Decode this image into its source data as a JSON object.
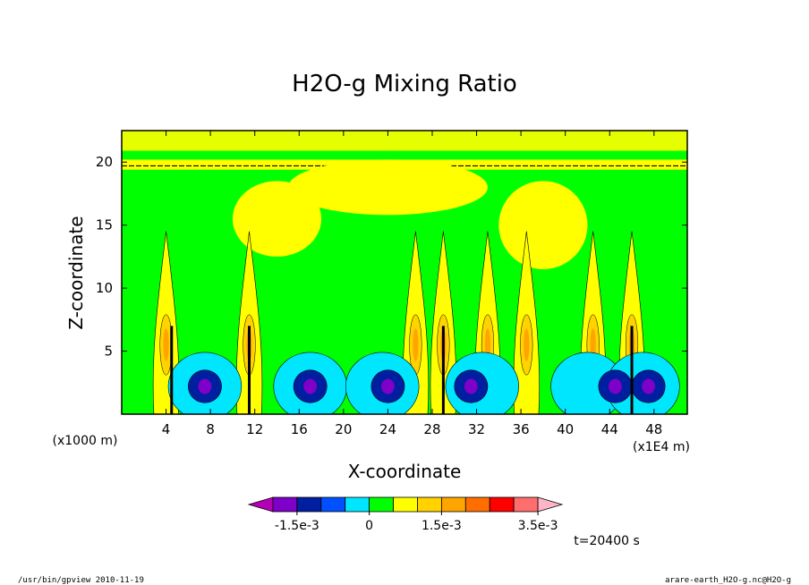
{
  "chart_data": {
    "type": "heatmap",
    "title": "H2O-g Mixing Ratio",
    "xlabel": "X-coordinate",
    "ylabel": "Z-coordinate",
    "x_unit_left": "(x1000 m)",
    "x_unit_right": "(x1E4 m)",
    "xlim": [
      0,
      51
    ],
    "ylim": [
      0,
      22.5
    ],
    "x_ticks": [
      4,
      8,
      12,
      16,
      20,
      24,
      28,
      32,
      36,
      40,
      44,
      48
    ],
    "y_ticks": [
      5,
      10,
      15,
      20
    ],
    "time_label": "t=20400 s",
    "colorbar": {
      "levels": [
        -0.0025,
        -0.002,
        -0.0015,
        -0.001,
        -0.0005,
        0,
        0.0005,
        0.001,
        0.0015,
        0.002,
        0.0025,
        0.003,
        0.0035
      ],
      "colors": [
        "#b400b4",
        "#7f00c8",
        "#001ea0",
        "#0050ff",
        "#00e6ff",
        "#00ff00",
        "#ffff00",
        "#ffd200",
        "#ffa500",
        "#ff6e00",
        "#ff0000",
        "#ff6e6e",
        "#ffb4c8"
      ],
      "labels": [
        "-1.5e-3",
        "0",
        "1.5e-3",
        "3.5e-3"
      ],
      "label_values": [
        -0.0015,
        0,
        0.0015,
        0.0035
      ]
    },
    "regions": {
      "background_value": 0,
      "upper_band_value": 0.0005,
      "yellow_plumes_x": [
        4,
        11.5,
        26.5,
        29,
        33,
        36.5,
        42.5,
        46
      ],
      "cyan_pools_x": [
        7.5,
        17,
        23.5,
        32.5,
        42,
        47
      ],
      "blue_cores_x": [
        7.5,
        17,
        24,
        31.5,
        44.5,
        47.5
      ],
      "dark_columns_x": [
        4.5,
        11.5,
        29,
        46
      ]
    }
  },
  "footer": {
    "left": "/usr/bin/gpview  2010-11-19",
    "right": "arare-earth_H2O-g.nc@H2O-g"
  },
  "colors": {
    "background": "#ffffff",
    "text": "#000000"
  }
}
